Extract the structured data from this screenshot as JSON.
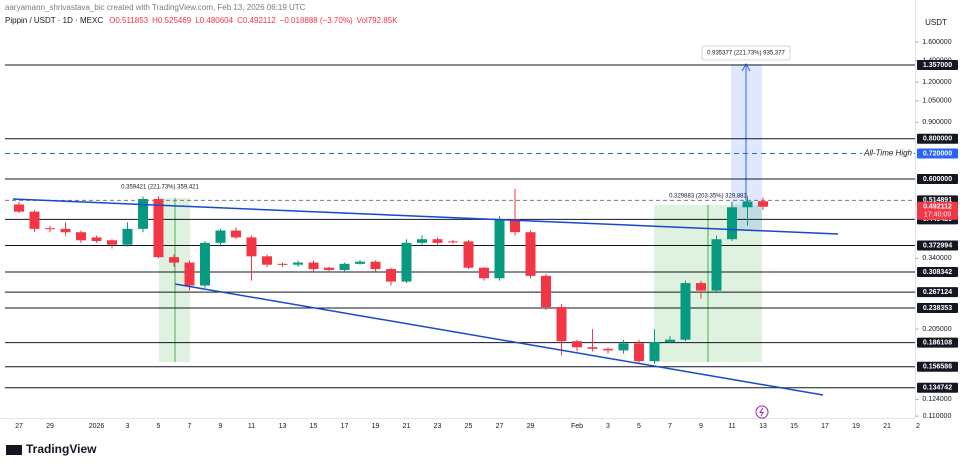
{
  "watermark": "aaryamann_shrivastava_bic created with TradingView.com, Feb 13, 2026 06:19 UTC",
  "brand": "TradingView",
  "chart_data": {
    "type": "candlestick",
    "title": "Pippin / USDT · 1D · MEXC",
    "header_values": [
      "O0.511853",
      "H0.525469",
      "L0.480604",
      "C0.492112",
      "−0.018888 (−3.70%)",
      "Vol792.85K"
    ],
    "currency": "USDT",
    "categories": [
      "27",
      null,
      "29",
      null,
      null,
      "2026",
      null,
      "3",
      null,
      "5",
      null,
      "7",
      null,
      "9",
      null,
      "11",
      null,
      "13",
      null,
      "15",
      null,
      "17",
      null,
      "19",
      null,
      "21",
      null,
      "23",
      null,
      "25",
      null,
      "27",
      null,
      "29",
      null,
      null,
      "Feb",
      null,
      "3",
      null,
      "5",
      null,
      "7",
      null,
      "9",
      null,
      "11",
      null,
      "13",
      null,
      "15",
      null,
      "17",
      null,
      "19",
      null,
      "21",
      null,
      "2"
    ],
    "open": [
      0.5,
      0.475,
      0.422,
      0.42,
      0.41,
      0.395,
      0.387,
      0.375,
      0.42,
      0.52,
      0.343,
      0.33,
      0.28,
      0.38,
      0.415,
      0.395,
      0.345,
      0.327,
      0.325,
      0.33,
      0.318,
      0.313,
      0.327,
      0.332,
      0.315,
      0.288,
      0.38,
      0.39,
      0.384,
      0.384,
      0.318,
      0.295,
      0.45,
      0.41,
      0.3,
      0.24,
      0.188,
      0.18,
      0.178,
      0.176,
      0.185,
      0.163,
      0.187,
      0.19,
      0.285,
      0.27,
      0.39,
      0.49,
      0.511853,
      null,
      null,
      null,
      null,
      null,
      null,
      null,
      null,
      null,
      null
    ],
    "high": [
      0.51,
      0.48,
      0.43,
      0.44,
      0.415,
      0.4,
      0.39,
      0.44,
      0.53,
      0.53,
      0.35,
      0.335,
      0.385,
      0.42,
      0.425,
      0.4,
      0.35,
      0.33,
      0.335,
      0.335,
      0.32,
      0.33,
      0.336,
      0.335,
      0.318,
      0.39,
      0.4,
      0.395,
      0.388,
      0.388,
      0.32,
      0.46,
      0.56,
      0.415,
      0.305,
      0.245,
      0.19,
      0.205,
      0.18,
      0.19,
      0.19,
      0.205,
      0.195,
      0.29,
      0.29,
      0.4,
      0.51,
      0.53,
      0.525469,
      null,
      null,
      null,
      null,
      null,
      null,
      null,
      null,
      null,
      null
    ],
    "low": [
      0.47,
      0.41,
      0.41,
      0.4,
      0.38,
      0.38,
      0.365,
      0.37,
      0.41,
      0.34,
      0.32,
      0.27,
      0.275,
      0.37,
      0.39,
      0.29,
      0.32,
      0.32,
      0.32,
      0.31,
      0.308,
      0.31,
      0.325,
      0.31,
      0.28,
      0.285,
      0.375,
      0.375,
      0.378,
      0.315,
      0.29,
      0.29,
      0.4,
      0.295,
      0.235,
      0.17,
      0.175,
      0.175,
      0.172,
      0.172,
      0.16,
      0.16,
      0.185,
      0.188,
      0.255,
      0.265,
      0.385,
      0.43,
      0.480604,
      null,
      null,
      null,
      null,
      null,
      null,
      null,
      null,
      null,
      null
    ],
    "close": [
      0.475,
      0.42,
      0.42,
      0.41,
      0.387,
      0.385,
      0.375,
      0.42,
      0.52,
      0.343,
      0.33,
      0.28,
      0.38,
      0.415,
      0.395,
      0.345,
      0.325,
      0.326,
      0.33,
      0.315,
      0.313,
      0.327,
      0.332,
      0.315,
      0.288,
      0.38,
      0.39,
      0.38,
      0.383,
      0.318,
      0.295,
      0.45,
      0.41,
      0.3,
      0.24,
      0.188,
      0.18,
      0.178,
      0.176,
      0.185,
      0.163,
      0.187,
      0.19,
      0.285,
      0.27,
      0.39,
      0.49,
      0.511,
      0.492112,
      null,
      null,
      null,
      null,
      null,
      null,
      null,
      null,
      null,
      null
    ],
    "up_color": "#089981",
    "down_color": "#f23645",
    "log_scale": true,
    "ylim": [
      0.1085,
      2.16
    ],
    "yticks": [
      {
        "value": 1.6,
        "label": "1.600000"
      },
      {
        "value": 1.4,
        "label": "1.400000"
      },
      {
        "value": 1.2,
        "label": "1.200000"
      },
      {
        "value": 1.05,
        "label": "1.050000"
      },
      {
        "value": 0.9,
        "label": "0.900000"
      },
      {
        "value": 0.34,
        "label": "0.340000"
      },
      {
        "value": 0.205,
        "label": "0.205000"
      },
      {
        "value": 0.124,
        "label": "0.124000"
      },
      {
        "value": 0.11,
        "label": "0.110000"
      }
    ],
    "levels": [
      {
        "value": 1.357,
        "label": "1.357000"
      },
      {
        "value": 0.8,
        "label": "0.800000"
      },
      {
        "value": 0.6,
        "label": "0.600000"
      },
      {
        "value": 0.514891,
        "label": "0.514891",
        "dashed": true
      },
      {
        "value": 0.449429,
        "label": "0.449429"
      },
      {
        "value": 0.372994,
        "label": "0.372994"
      },
      {
        "value": 0.308342,
        "label": "0.308342"
      },
      {
        "value": 0.267124,
        "label": "0.267124"
      },
      {
        "value": 0.238353,
        "label": "0.238353"
      },
      {
        "value": 0.186108,
        "label": "0.186108"
      },
      {
        "value": 0.156586,
        "label": "0.156586"
      },
      {
        "value": 0.134742,
        "label": "0.134742"
      }
    ],
    "all_time_high": {
      "value": 0.72,
      "label": "0.720000",
      "text": "All-Time High",
      "color": "#2962ff"
    },
    "last_price": {
      "value": 0.492112,
      "label": "0.492112",
      "countdown": "17:40:09"
    },
    "annotations": [
      "0.359421 (221.73%) 359,421",
      "0.329883 (203.35%) 329,883",
      "0.935377 (221.73%) 935,377"
    ]
  }
}
